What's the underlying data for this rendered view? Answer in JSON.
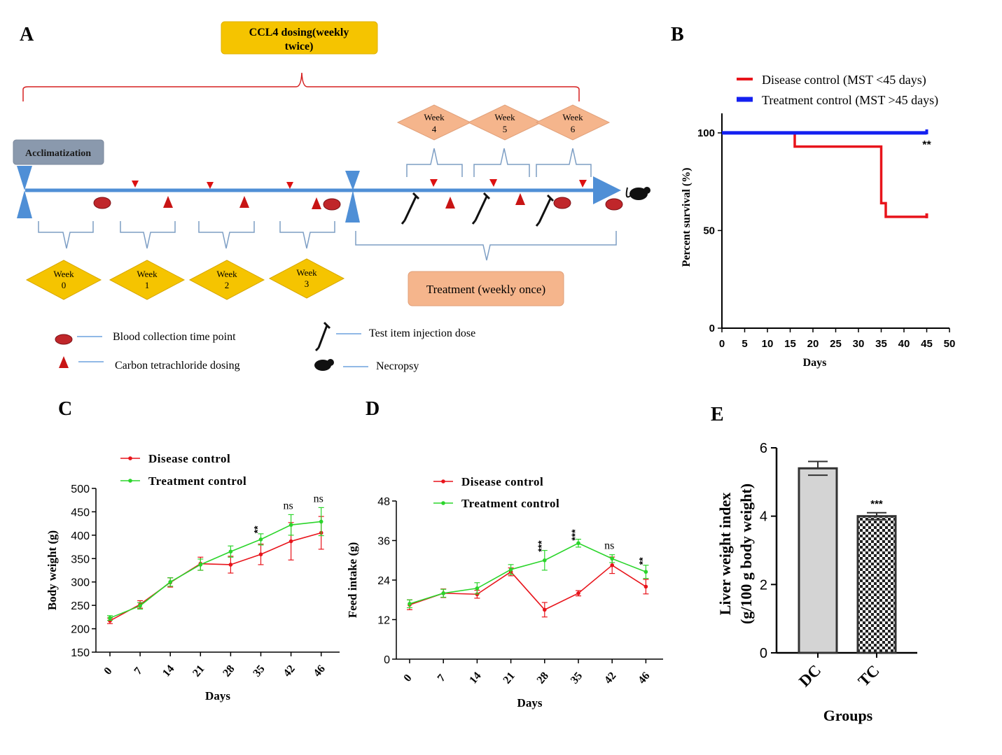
{
  "panel_labels": {
    "a": "A",
    "b": "B",
    "c": "C",
    "d": "D",
    "e": "E"
  },
  "colors": {
    "red": "#e8141b",
    "green": "#2bd52b",
    "blue": "#1420f0",
    "timeline": "#4f8fd6",
    "yellow": "#f5c400",
    "salmon": "#f5b58c",
    "grey_box": "#8a99ad",
    "bracket_blue": "#7d9ec4"
  },
  "timeline": {
    "ccl4_box": [
      "CCL4 dosing(weekly",
      "twice)"
    ],
    "acclimatization": "Acclimatization",
    "treatment_box": "Treatment (weekly once)",
    "weeks_bottom": [
      {
        "w": "Week",
        "n": "0"
      },
      {
        "w": "Week",
        "n": "1"
      },
      {
        "w": "Week",
        "n": "2"
      },
      {
        "w": "Week",
        "n": "3"
      }
    ],
    "weeks_top": [
      {
        "w": "Week",
        "n": "4"
      },
      {
        "w": "Week",
        "n": "5"
      },
      {
        "w": "Week",
        "n": "6"
      }
    ],
    "legend": {
      "blood": "Blood collection time point",
      "ccl4": "Carbon tetrachloride dosing",
      "injection": "Test item injection dose",
      "necropsy": "Necropsy"
    }
  },
  "chart_data": [
    {
      "id": "B",
      "type": "line",
      "subtype": "survival-step",
      "series": [
        {
          "name": "Disease control (MST <45 days)",
          "color": "#e8141b",
          "x": [
            0,
            16,
            16,
            35,
            35,
            36,
            36,
            45
          ],
          "y": [
            100,
            100,
            93,
            93,
            64,
            64,
            57,
            57
          ]
        },
        {
          "name": "Treatment control (MST >45 days)",
          "color": "#1420f0",
          "x": [
            0,
            45
          ],
          "y": [
            100,
            100
          ]
        }
      ],
      "xlabel": "Days",
      "ylabel": "Percent survival (%)",
      "xlim": [
        0,
        50
      ],
      "ylim": [
        0,
        110
      ],
      "xticks": [
        0,
        5,
        10,
        15,
        20,
        25,
        30,
        35,
        40,
        45,
        50
      ],
      "yticks": [
        0,
        50,
        100
      ],
      "annotation": {
        "x": 45,
        "y": 100,
        "text": "**"
      }
    },
    {
      "id": "C",
      "type": "line",
      "categories": [
        "0",
        "7",
        "14",
        "21",
        "28",
        "35",
        "42",
        "46"
      ],
      "series": [
        {
          "name": "Disease control",
          "color": "#e8141b",
          "values": [
            217,
            252,
            299,
            339,
            337,
            359,
            387,
            405
          ],
          "errors": [
            6,
            8,
            10,
            14,
            18,
            22,
            40,
            35
          ]
        },
        {
          "name": "Treatment control",
          "color": "#2bd52b",
          "values": [
            223,
            249,
            300,
            337,
            365,
            391,
            422,
            429
          ],
          "errors": [
            5,
            7,
            9,
            12,
            12,
            12,
            22,
            30
          ]
        }
      ],
      "xlabel": "Days",
      "ylabel": "Body weight (g)",
      "ylim": [
        150,
        500
      ],
      "yticks": [
        150,
        200,
        250,
        300,
        350,
        400,
        450,
        500
      ],
      "annotations": [
        {
          "index": 5,
          "text": "**"
        },
        {
          "index": 6,
          "text": "ns"
        },
        {
          "index": 7,
          "text": "ns"
        }
      ]
    },
    {
      "id": "D",
      "type": "line",
      "categories": [
        "0",
        "7",
        "14",
        "21",
        "28",
        "35",
        "42",
        "46"
      ],
      "series": [
        {
          "name": "Disease control",
          "color": "#e8141b",
          "values": [
            16.5,
            20,
            19.7,
            26.5,
            15,
            20,
            28.5,
            22
          ],
          "errors": [
            1.5,
            1.3,
            1.2,
            1.2,
            2.2,
            0.8,
            2.5,
            2.2
          ]
        },
        {
          "name": "Treatment control",
          "color": "#2bd52b",
          "values": [
            16.8,
            20,
            21.5,
            27.2,
            30,
            35.2,
            30.5,
            26.5
          ],
          "errors": [
            1.2,
            1.2,
            1.7,
            1.5,
            3,
            1.2,
            1.2,
            2
          ]
        }
      ],
      "xlabel": "Days",
      "ylabel": "Feed intake (g)",
      "ylim": [
        0,
        48
      ],
      "yticks": [
        0,
        12,
        24,
        36,
        48
      ],
      "annotations": [
        {
          "index": 4,
          "text": "***"
        },
        {
          "index": 5,
          "text": "***"
        },
        {
          "index": 6,
          "text": "ns"
        },
        {
          "index": 7,
          "text": "**"
        }
      ]
    },
    {
      "id": "E",
      "type": "bar",
      "categories": [
        "DC",
        "TC"
      ],
      "values": [
        5.4,
        4.0
      ],
      "errors": [
        0.2,
        0.1
      ],
      "xlabel": "Groups",
      "ylabel": [
        "Liver weight index",
        "(g/100 g body weight)"
      ],
      "ylim": [
        0,
        6
      ],
      "yticks": [
        0,
        2,
        4,
        6
      ],
      "annotations": [
        {
          "index": 1,
          "text": "***"
        }
      ]
    }
  ]
}
